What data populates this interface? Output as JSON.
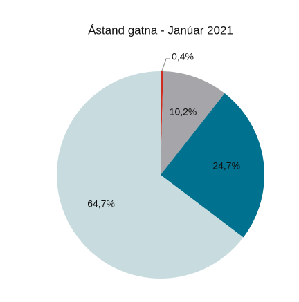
{
  "chart_data": {
    "type": "pie",
    "title": "Ástand gatna - Janúar 2021",
    "values": [
      0.4,
      10.2,
      24.7,
      64.7
    ],
    "value_labels": [
      "0,4%",
      "10,2%",
      "24,7%",
      "64,7%"
    ],
    "colors": [
      "#d12b1f",
      "#a6a6aa",
      "#00718e",
      "#c8dcdf"
    ]
  }
}
